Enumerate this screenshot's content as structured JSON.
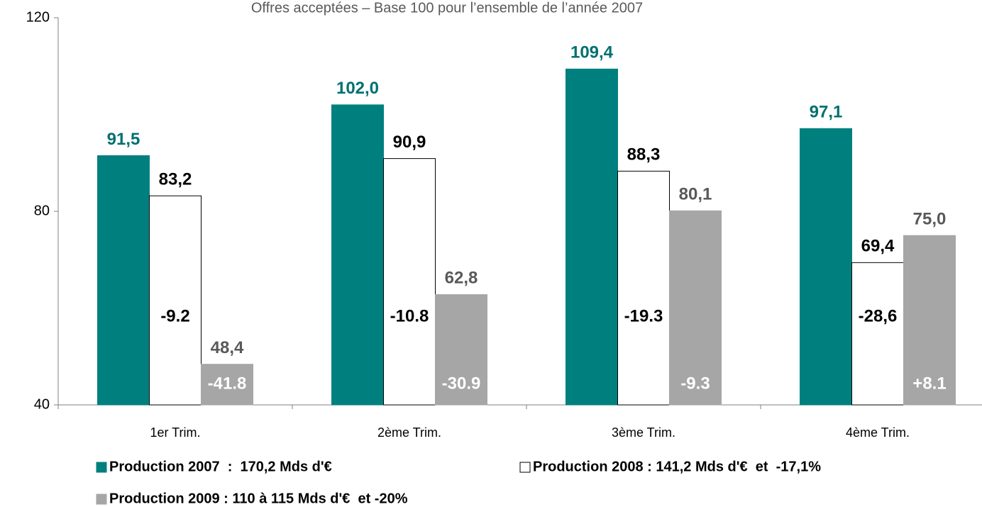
{
  "chart_data": {
    "type": "bar",
    "title": "Offres acceptées – Base 100 pour l’ensemble de l’année 2007",
    "categories": [
      "1er Trim.",
      "2ème Trim.",
      "3ème Trim.",
      "4ème Trim."
    ],
    "series": [
      {
        "name": "Production 2007  :  170,2 Mds d'€",
        "color": "#007f7f",
        "label_color": "#007070",
        "values": [
          91.5,
          102.0,
          109.4,
          97.1
        ],
        "value_labels": [
          "91,5",
          "102,0",
          "109,4",
          "97,1"
        ]
      },
      {
        "name": "Production 2008 : 141,2 Mds d'€  et  -17,1%",
        "color": "#ffffff",
        "label_color": "#000000",
        "values": [
          83.2,
          90.9,
          88.3,
          69.4
        ],
        "value_labels": [
          "83,2",
          "90,9",
          "88,3",
          "69,4"
        ],
        "change_labels": [
          "-9.2",
          "-10.8",
          "-19.3",
          "-28,6"
        ],
        "change_color": "#000000"
      },
      {
        "name": "Production 2009 : 110 à 115 Mds d'€  et -20%",
        "color": "#a6a6a6",
        "label_color": "#595959",
        "values": [
          48.4,
          62.8,
          80.1,
          75.0
        ],
        "value_labels": [
          "48,4",
          "62,8",
          "80,1",
          "75,0"
        ],
        "change_labels": [
          "-41.8",
          "-30.9",
          "-9.3",
          "+8.1"
        ],
        "change_color": "#ffffff"
      }
    ],
    "ylim": [
      40,
      120
    ],
    "yticks": [
      40,
      80,
      120
    ],
    "grid": false
  }
}
